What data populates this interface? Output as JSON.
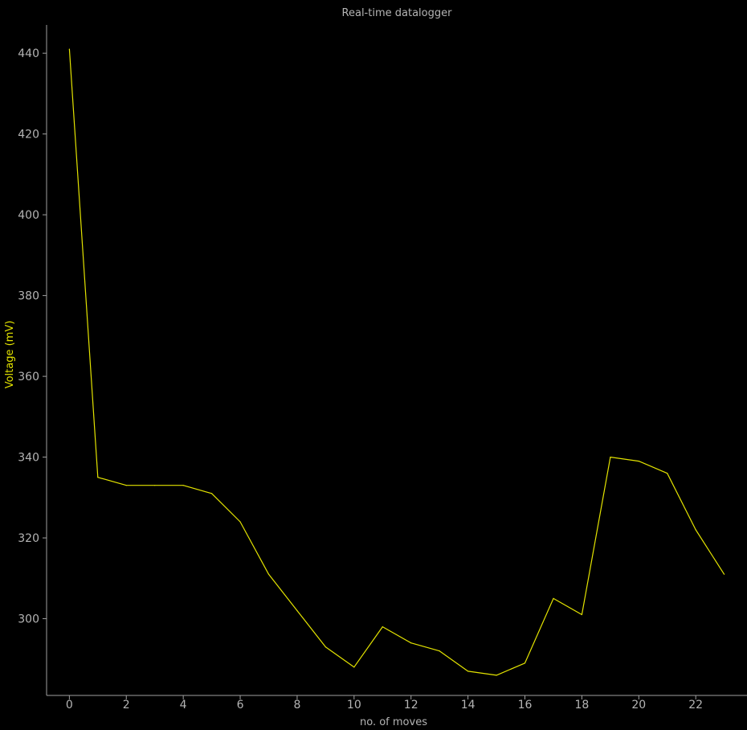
{
  "chart_data": {
    "type": "line",
    "title": "Real-time datalogger",
    "xlabel": "no. of moves",
    "ylabel": "Voltage (mV)",
    "xlim": [
      -0.8,
      23.8
    ],
    "ylim": [
      281,
      447
    ],
    "xticks": [
      0,
      2,
      4,
      6,
      8,
      10,
      12,
      14,
      16,
      18,
      20,
      22
    ],
    "yticks": [
      300,
      320,
      340,
      360,
      380,
      400,
      420,
      440
    ],
    "grid": false,
    "series": [
      {
        "color": "#e3e300",
        "x": [
          0,
          1,
          2,
          3,
          4,
          5,
          6,
          7,
          8,
          9,
          10,
          11,
          12,
          13,
          14,
          15,
          16,
          17,
          18,
          19,
          20,
          21,
          22,
          23
        ],
        "y": [
          441,
          335,
          333,
          333,
          333,
          331,
          324,
          311,
          302,
          293,
          288,
          298,
          294,
          292,
          287,
          286,
          289,
          305,
          301,
          340,
          339,
          336,
          322,
          311
        ]
      }
    ]
  }
}
